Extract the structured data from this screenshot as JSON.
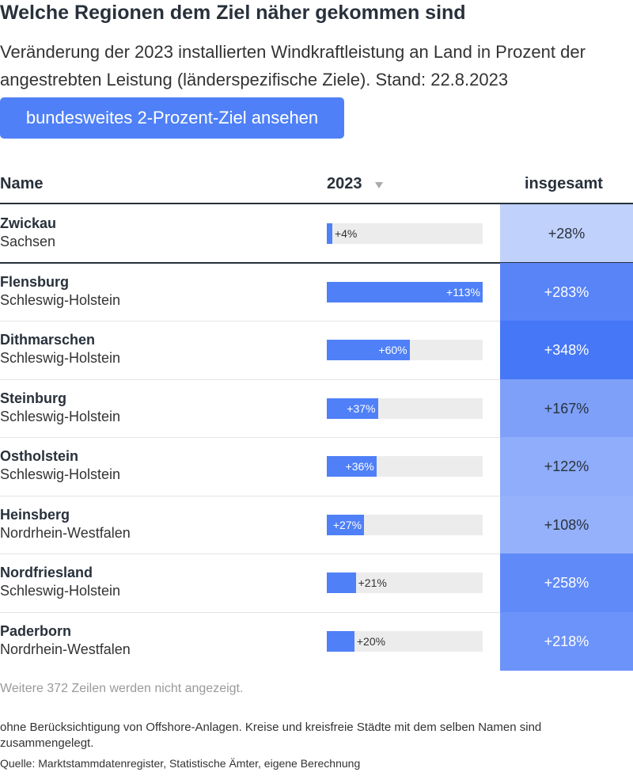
{
  "header": {
    "title": "Welche Regionen dem Ziel näher gekommen sind",
    "subtitle": "Veränderung der 2023 installierten Windkraftleistung an Land in Prozent der angestrebten Leistung (länderspezifische Ziele). Stand: 22.8.2023",
    "button": "bundesweites 2-Prozent-Ziel ansehen"
  },
  "table": {
    "columns": [
      "Name",
      "2023",
      "insgesamt"
    ],
    "pinned_row": {
      "name": "Zwickau",
      "region": "Sachsen",
      "change_2023": 4,
      "change_2023_label": "+4%",
      "total": 28,
      "total_label": "+28%"
    },
    "rows": [
      {
        "name": "Flensburg",
        "region": "Schleswig-Holstein",
        "change_2023": 113,
        "change_2023_label": "+113%",
        "total": 283,
        "total_label": "+283%"
      },
      {
        "name": "Dithmarschen",
        "region": "Schleswig-Holstein",
        "change_2023": 60,
        "change_2023_label": "+60%",
        "total": 348,
        "total_label": "+348%"
      },
      {
        "name": "Steinburg",
        "region": "Schleswig-Holstein",
        "change_2023": 37,
        "change_2023_label": "+37%",
        "total": 167,
        "total_label": "+167%"
      },
      {
        "name": "Ostholstein",
        "region": "Schleswig-Holstein",
        "change_2023": 36,
        "change_2023_label": "+36%",
        "total": 122,
        "total_label": "+122%"
      },
      {
        "name": "Heinsberg",
        "region": "Nordrhein-Westfalen",
        "change_2023": 27,
        "change_2023_label": "+27%",
        "total": 108,
        "total_label": "+108%"
      },
      {
        "name": "Nordfriesland",
        "region": "Schleswig-Holstein",
        "change_2023": 21,
        "change_2023_label": "+21%",
        "total": 258,
        "total_label": "+258%"
      },
      {
        "name": "Paderborn",
        "region": "Nordrhein-Westfalen",
        "change_2023": 20,
        "change_2023_label": "+20%",
        "total": 218,
        "total_label": "+218%"
      }
    ]
  },
  "footer": {
    "more_rows": "Weitere 372 Zeilen werden nicht angezeigt.",
    "notes": "ohne Berücksichtigung von Offshore-Anlagen. Kreise und kreisfreie Städte mit dem selben Namen sind zusammengelegt.",
    "source": "Quelle: Marktstammdatenregister, Statistische Ämter, eigene Berechnung"
  }
}
